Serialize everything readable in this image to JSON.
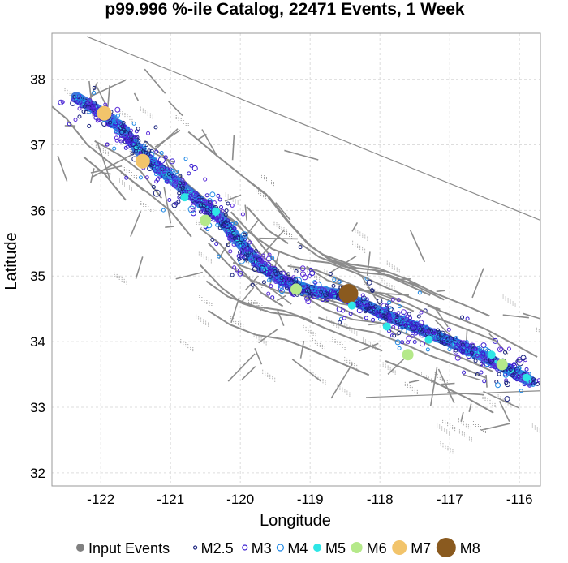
{
  "chart_data": {
    "type": "scatter",
    "title": "p99.996 %-ile Catalog, 22471 Events, 1 Week",
    "xlabel": "Longitude",
    "ylabel": "Latitude",
    "xlim": [
      -122.7,
      -115.7
    ],
    "ylim": [
      31.8,
      38.7
    ],
    "x_ticks": [
      -122,
      -121,
      -120,
      -119,
      -118,
      -117,
      -116
    ],
    "y_ticks": [
      32,
      33,
      34,
      35,
      36,
      37,
      38
    ],
    "x_tick_labels": [
      "-122",
      "-121",
      "-120",
      "-119",
      "-118",
      "-117",
      "-116"
    ],
    "y_tick_labels": [
      "32",
      "33",
      "34",
      "35",
      "36",
      "37",
      "38"
    ],
    "grid": true,
    "legend_position": "bottom",
    "legend": [
      {
        "label": "Input Events",
        "color": "#808080",
        "style": "filled",
        "size": 5
      },
      {
        "label": "M2.5",
        "color": "#1a237e",
        "style": "ring",
        "size": 2
      },
      {
        "label": "M3",
        "color": "#3b1fd1",
        "style": "ring",
        "size": 3
      },
      {
        "label": "M4",
        "color": "#1e88e5",
        "style": "ring",
        "size": 4
      },
      {
        "label": "M5",
        "color": "#2ee6e6",
        "style": "filled",
        "size": 5
      },
      {
        "label": "M6",
        "color": "#b5e98a",
        "style": "filled",
        "size": 7
      },
      {
        "label": "M7",
        "color": "#f2c46b",
        "style": "filled",
        "size": 9
      },
      {
        "label": "M8",
        "color": "#8a5a1f",
        "style": "filled",
        "size": 12
      }
    ],
    "fault_trace": [
      [
        -122.35,
        37.72
      ],
      [
        -122.0,
        37.5
      ],
      [
        -121.7,
        37.25
      ],
      [
        -121.4,
        36.85
      ],
      [
        -121.0,
        36.5
      ],
      [
        -120.6,
        36.15
      ],
      [
        -120.3,
        35.9
      ],
      [
        -120.0,
        35.5
      ],
      [
        -119.7,
        35.15
      ],
      [
        -119.4,
        34.93
      ],
      [
        -119.0,
        34.78
      ],
      [
        -118.6,
        34.72
      ],
      [
        -118.2,
        34.55
      ],
      [
        -117.8,
        34.35
      ],
      [
        -117.4,
        34.18
      ],
      [
        -117.0,
        34.0
      ],
      [
        -116.6,
        33.82
      ],
      [
        -116.2,
        33.6
      ],
      [
        -115.85,
        33.4
      ]
    ],
    "major_events": [
      {
        "lon": -121.95,
        "lat": 37.48,
        "mag": "M7"
      },
      {
        "lon": -121.4,
        "lat": 36.75,
        "mag": "M7"
      },
      {
        "lon": -120.8,
        "lat": 36.2,
        "mag": "M5"
      },
      {
        "lon": -120.5,
        "lat": 35.85,
        "mag": "M6"
      },
      {
        "lon": -120.35,
        "lat": 35.98,
        "mag": "M5"
      },
      {
        "lon": -119.2,
        "lat": 34.8,
        "mag": "M6"
      },
      {
        "lon": -118.45,
        "lat": 34.73,
        "mag": "M8"
      },
      {
        "lon": -118.4,
        "lat": 34.55,
        "mag": "M5"
      },
      {
        "lon": -117.9,
        "lat": 34.23,
        "mag": "M5"
      },
      {
        "lon": -117.6,
        "lat": 33.8,
        "mag": "M6"
      },
      {
        "lon": -117.3,
        "lat": 34.03,
        "mag": "M5"
      },
      {
        "lon": -116.4,
        "lat": 33.8,
        "mag": "M5"
      },
      {
        "lon": -116.25,
        "lat": 33.65,
        "mag": "M6"
      },
      {
        "lon": -115.9,
        "lat": 33.45,
        "mag": "M5"
      }
    ]
  }
}
